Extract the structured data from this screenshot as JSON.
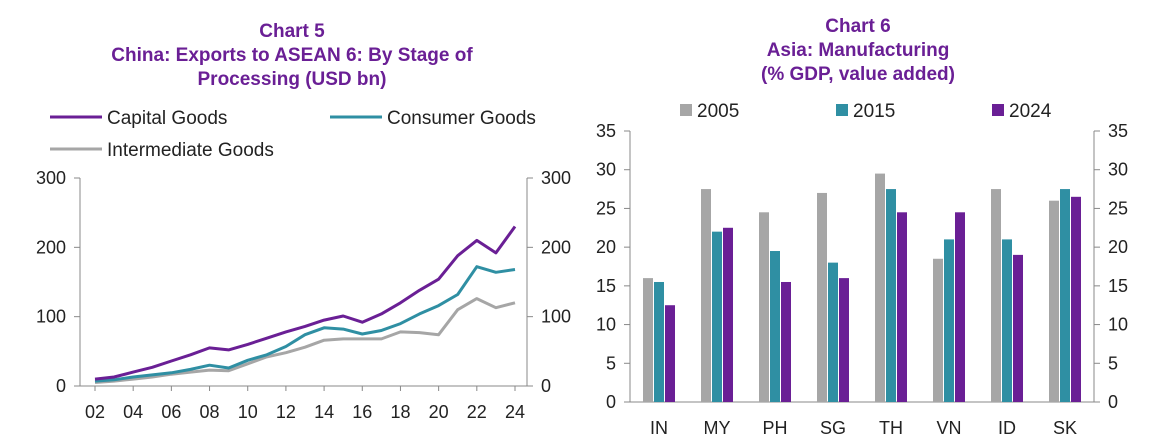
{
  "chart_data": [
    {
      "type": "line",
      "title_lines": [
        "Chart 5",
        "China: Exports to ASEAN 6: By Stage of",
        "Processing (USD bn)"
      ],
      "x": [
        "02",
        "03",
        "04",
        "05",
        "06",
        "07",
        "08",
        "09",
        "10",
        "11",
        "12",
        "13",
        "14",
        "15",
        "16",
        "17",
        "18",
        "19",
        "20",
        "21",
        "22",
        "23",
        "24"
      ],
      "x_tick_labels": [
        "02",
        "04",
        "06",
        "08",
        "10",
        "12",
        "14",
        "16",
        "18",
        "20",
        "22",
        "24"
      ],
      "y_ticks_left": [
        "0",
        "100",
        "200",
        "300"
      ],
      "y_ticks_right": [
        "0",
        "100",
        "200",
        "300"
      ],
      "ylim": [
        0,
        300
      ],
      "legend_position": "top",
      "series": [
        {
          "name": "Capital Goods",
          "color": "#6a1f95",
          "values": [
            10,
            13,
            20,
            27,
            36,
            45,
            55,
            52,
            60,
            69,
            78,
            86,
            95,
            101,
            92,
            104,
            120,
            138,
            154,
            188,
            210,
            192,
            230
          ]
        },
        {
          "name": "Consumer Goods",
          "color": "#2f8fa3",
          "values": [
            7,
            9,
            13,
            16,
            19,
            24,
            30,
            26,
            37,
            45,
            57,
            74,
            84,
            82,
            75,
            80,
            90,
            104,
            116,
            132,
            172,
            164,
            168
          ]
        },
        {
          "name": "Intermediate Goods",
          "color": "#a6a6a6",
          "values": [
            5,
            7,
            10,
            13,
            17,
            20,
            23,
            22,
            32,
            42,
            48,
            56,
            66,
            68,
            68,
            68,
            78,
            77,
            74,
            110,
            126,
            113,
            120
          ]
        }
      ]
    },
    {
      "type": "bar",
      "title_lines": [
        "Chart 6",
        "Asia: Manufacturing",
        "(% GDP, value added)"
      ],
      "categories": [
        "IN",
        "MY",
        "PH",
        "SG",
        "TH",
        "VN",
        "ID",
        "SK"
      ],
      "y_ticks_left": [
        "0",
        "5",
        "10",
        "15",
        "20",
        "25",
        "30",
        "35"
      ],
      "y_ticks_right": [
        "0",
        "5",
        "10",
        "15",
        "20",
        "25",
        "30",
        "35"
      ],
      "ylim": [
        0,
        35
      ],
      "legend_position": "top",
      "series": [
        {
          "name": "2005",
          "color": "#a6a6a6",
          "values": [
            16,
            27.5,
            24.5,
            27,
            29.5,
            18.5,
            27.5,
            26
          ]
        },
        {
          "name": "2015",
          "color": "#2f8fa3",
          "values": [
            15.5,
            22,
            19.5,
            18,
            27.5,
            21,
            21,
            27.5
          ]
        },
        {
          "name": "2024",
          "color": "#6a1f95",
          "values": [
            12.5,
            22.5,
            15.5,
            16,
            24.5,
            24.5,
            19,
            26.5
          ]
        }
      ]
    }
  ]
}
